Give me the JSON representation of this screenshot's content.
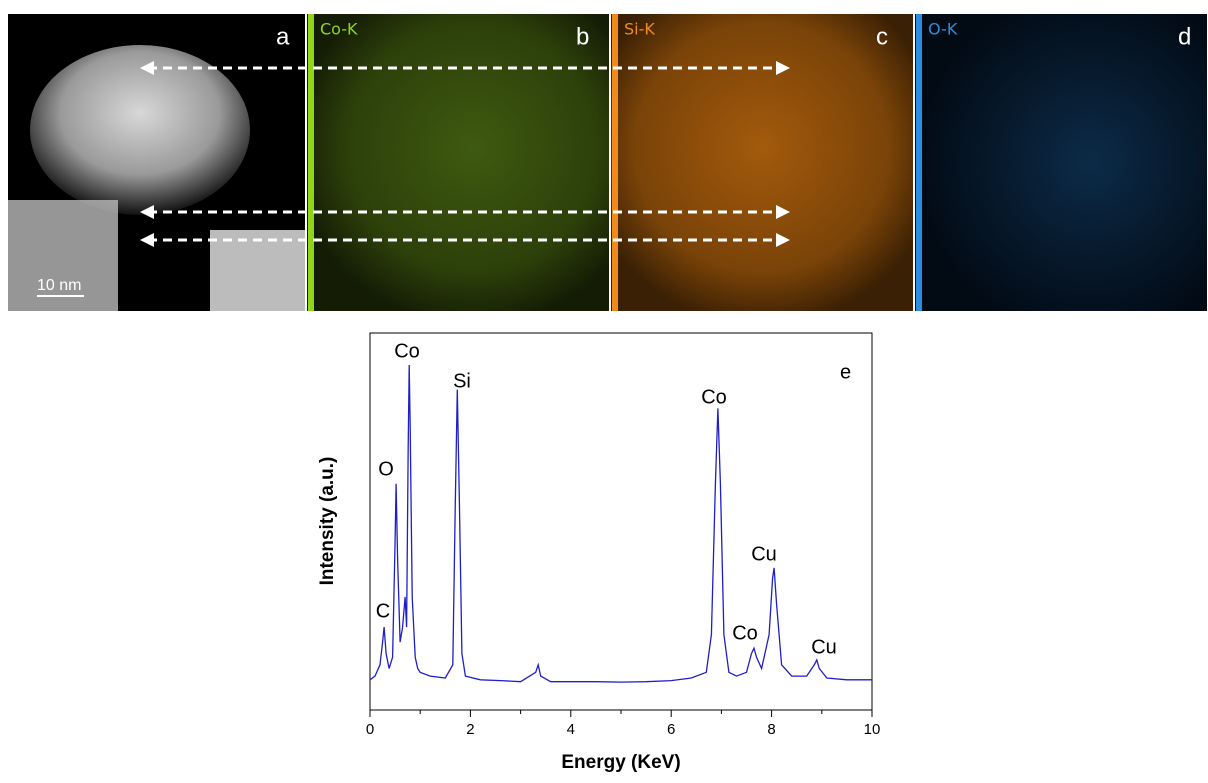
{
  "panels": [
    {
      "letter": "a",
      "scale_bar": "10 nm"
    },
    {
      "letter": "b",
      "element": "Co-K"
    },
    {
      "letter": "c",
      "element": "Si-K"
    },
    {
      "letter": "d",
      "element": "O-K"
    }
  ],
  "chart_data": {
    "type": "line",
    "label": "e",
    "x_label": "Energy (KeV)",
    "y_label": "Intensity (a.u.)",
    "color": "#1f1fc8",
    "x": [
      0.0,
      0.1,
      0.2,
      0.25,
      0.28,
      0.32,
      0.38,
      0.45,
      0.5,
      0.52,
      0.55,
      0.6,
      0.65,
      0.7,
      0.73,
      0.76,
      0.78,
      0.8,
      0.84,
      0.9,
      0.95,
      1.0,
      1.2,
      1.5,
      1.65,
      1.7,
      1.74,
      1.78,
      1.83,
      1.9,
      2.2,
      2.6,
      3.0,
      3.3,
      3.35,
      3.4,
      3.6,
      4.0,
      4.5,
      5.0,
      5.5,
      6.0,
      6.4,
      6.7,
      6.8,
      6.88,
      6.93,
      6.98,
      7.05,
      7.15,
      7.3,
      7.5,
      7.6,
      7.65,
      7.7,
      7.8,
      7.95,
      8.02,
      8.05,
      8.1,
      8.2,
      8.4,
      8.7,
      8.85,
      8.9,
      8.95,
      9.1,
      9.5,
      10.0
    ],
    "values": [
      8,
      9,
      12,
      18,
      22,
      15,
      11,
      14,
      45,
      60,
      40,
      18,
      22,
      30,
      22,
      70,
      91.5,
      75,
      30,
      14,
      11,
      10,
      9,
      8.5,
      12,
      55,
      85,
      55,
      15,
      9,
      8,
      7.8,
      7.5,
      10,
      12,
      9,
      7.5,
      7.5,
      7.5,
      7.4,
      7.5,
      7.8,
      8.5,
      10,
      20,
      60,
      80,
      60,
      20,
      10,
      9,
      10,
      15,
      16.4,
      14,
      11,
      20,
      35,
      37.7,
      28,
      12,
      9,
      9,
      12,
      13.3,
      11,
      8.5,
      8,
      8
    ],
    "xlim": [
      0,
      10
    ],
    "ylim": [
      0,
      100
    ],
    "xticks": [
      0,
      2,
      4,
      6,
      8,
      10
    ],
    "annotations": [
      "C",
      "O",
      "Co",
      "Si",
      "Co",
      "Co",
      "Cu",
      "Cu"
    ]
  }
}
